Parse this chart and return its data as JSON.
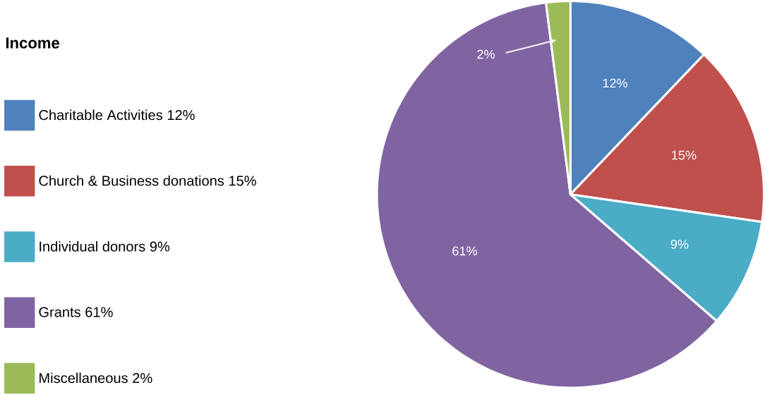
{
  "chart_data": {
    "type": "pie",
    "title": "Income",
    "legend": "left",
    "categories": [
      "Charitable Activities 12%",
      "Church & Business donations 15%",
      "Individual donors 9%",
      "Grants 61%",
      "Miscellaneous 2%"
    ],
    "values": [
      12,
      15,
      9,
      61,
      2
    ],
    "colors": [
      "#4f81bd",
      "#c0504d",
      "#4bacc6",
      "#8064a2",
      "#9bbb59"
    ],
    "value_labels": [
      "12%",
      "15%",
      "9%",
      "61%",
      "2%"
    ]
  }
}
